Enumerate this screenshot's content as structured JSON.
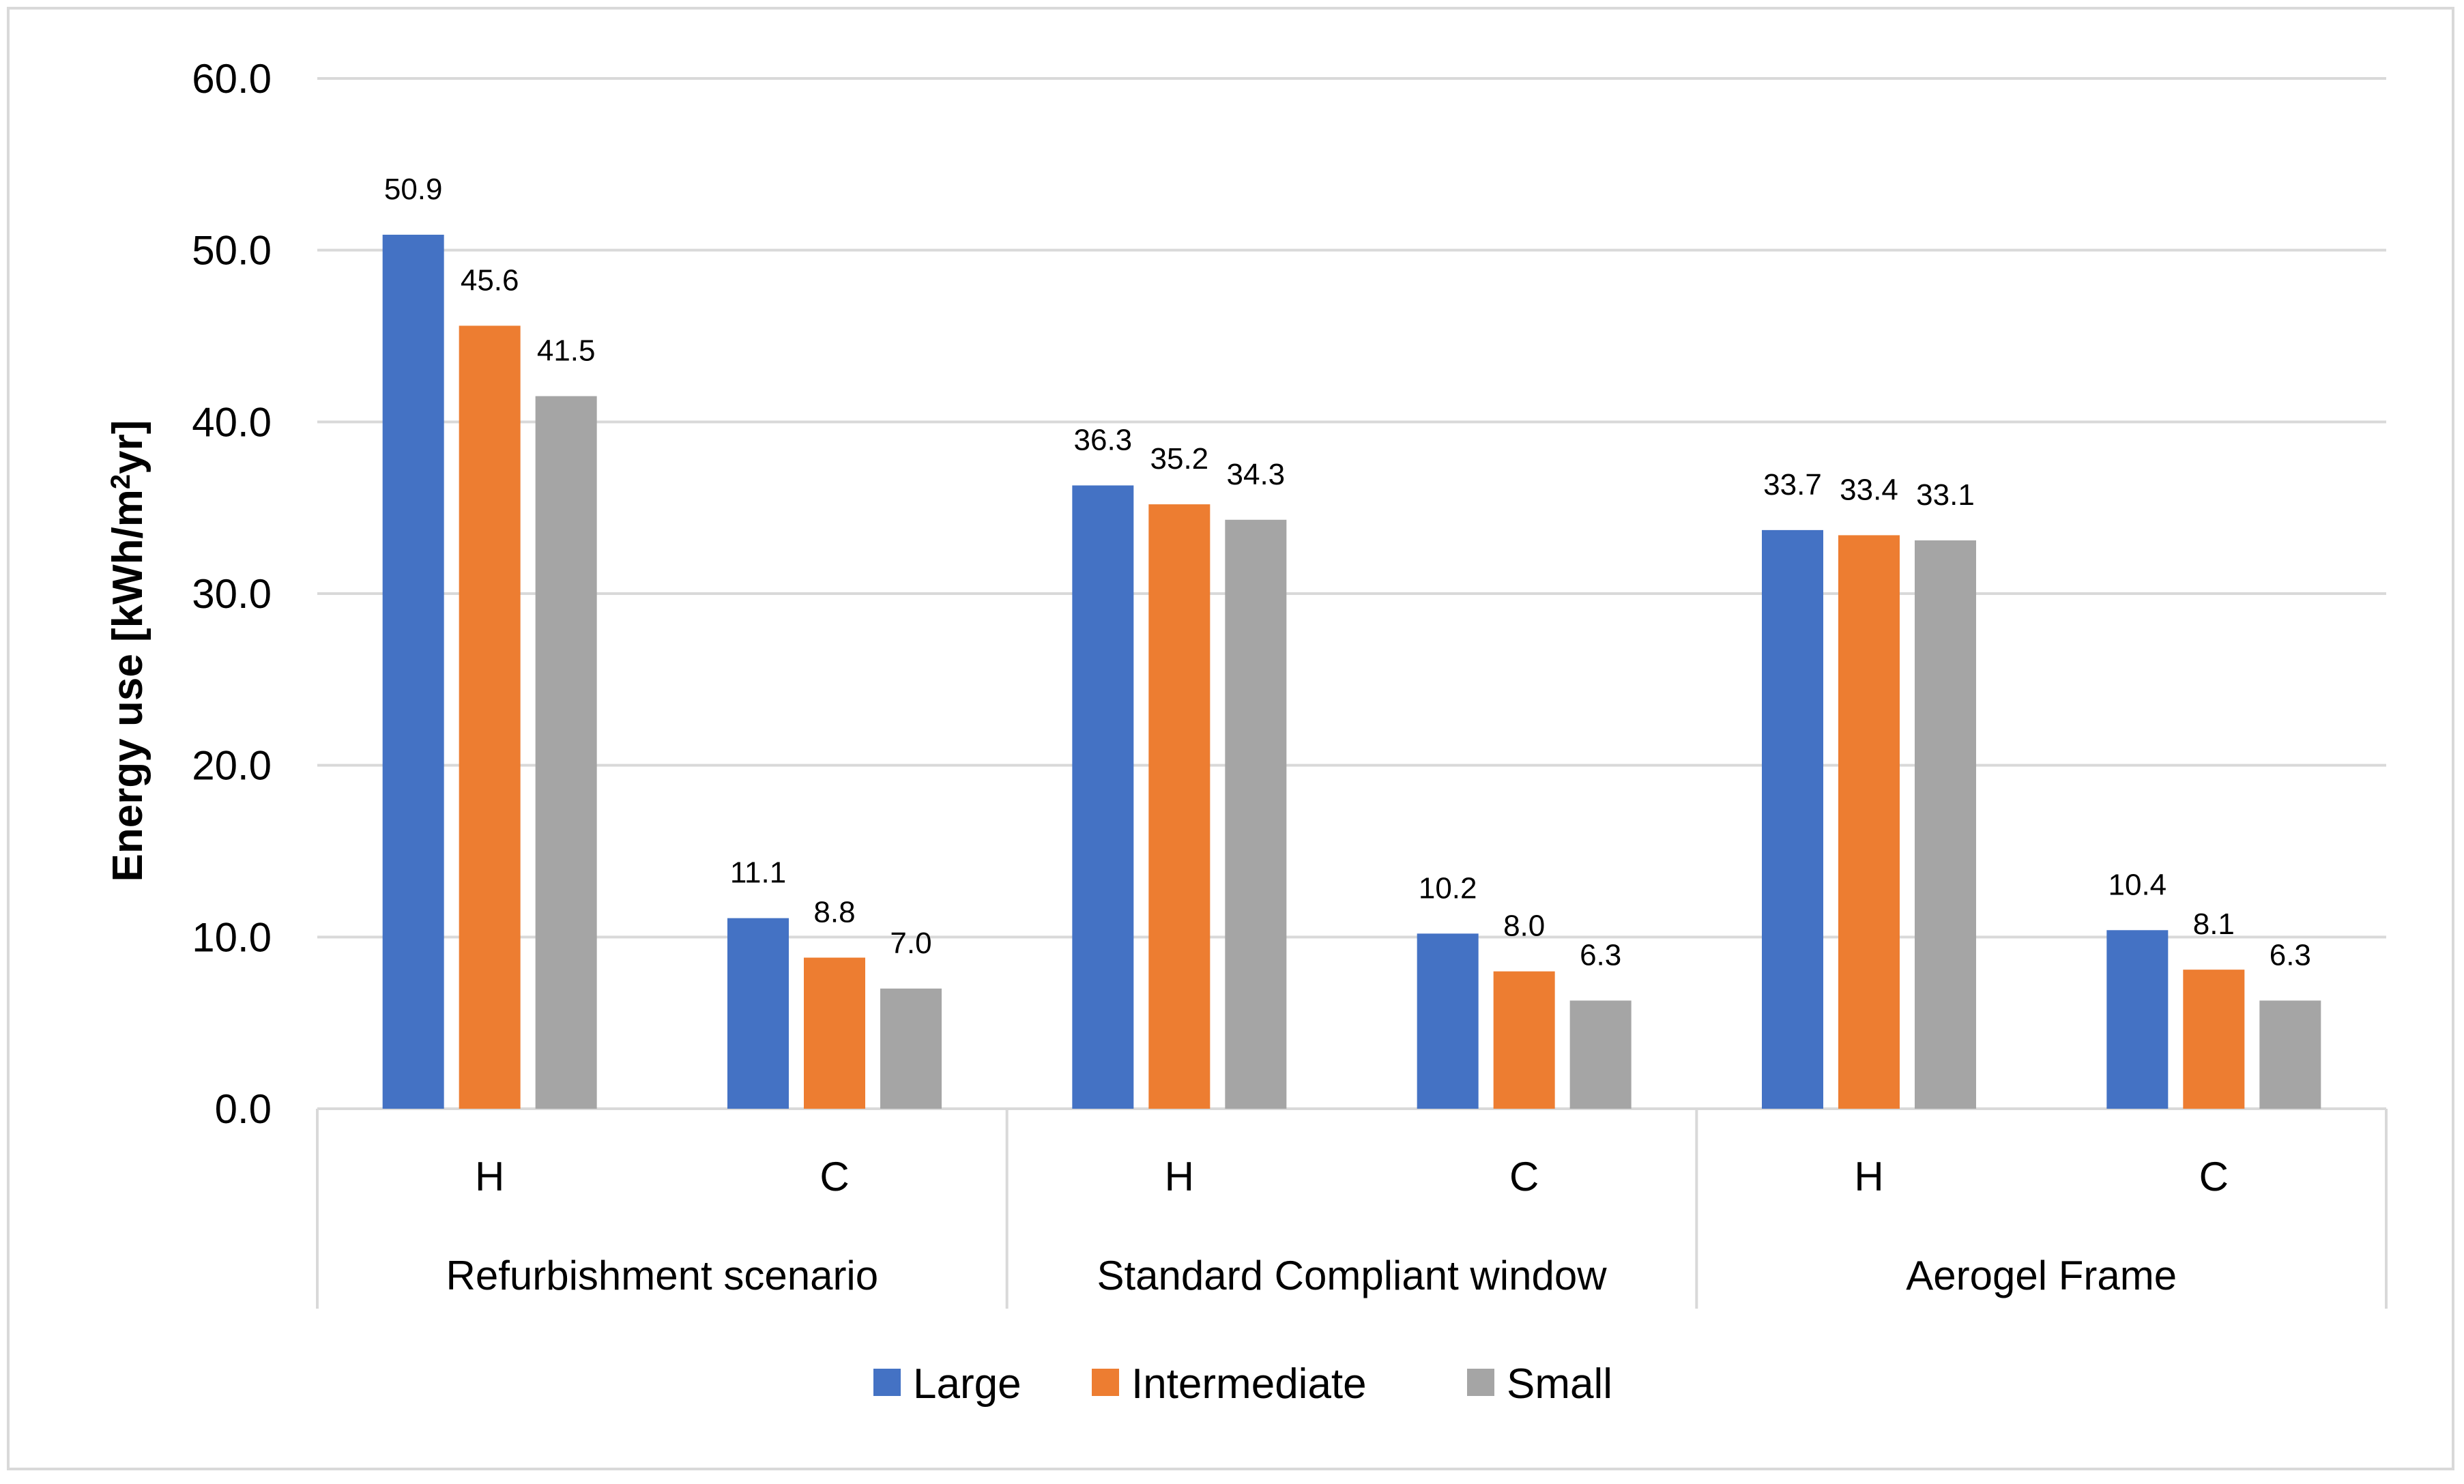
{
  "chart_data": {
    "type": "bar",
    "title": "",
    "ylabel": "Energy use [kWh/m²yr]",
    "ylabel_base": "Energy use [kWh/m",
    "ylabel_sup": "2",
    "ylabel_end": "yr]",
    "ylim": [
      0,
      60
    ],
    "yticks": [
      "0.0",
      "10.0",
      "20.0",
      "30.0",
      "40.0",
      "50.0",
      "60.0"
    ],
    "grid": true,
    "groups": [
      "Refurbishment scenario",
      "Standard Compliant window",
      "Aerogel Frame"
    ],
    "subcategories": [
      "H",
      "C",
      "H",
      "C",
      "H",
      "C"
    ],
    "legend_position": "bottom",
    "series": [
      {
        "name": "Large",
        "color": "#4472c4",
        "values": [
          50.9,
          11.1,
          36.3,
          10.2,
          33.7,
          10.4
        ],
        "labels": [
          "50.9",
          "11.1",
          "36.3",
          "10.2",
          "33.7",
          "10.4"
        ]
      },
      {
        "name": "Intermediate",
        "color": "#ed7d31",
        "values": [
          45.6,
          8.8,
          35.2,
          8.0,
          33.4,
          8.1
        ],
        "labels": [
          "45.6",
          "8.8",
          "35.2",
          "8.0",
          "33.4",
          "8.1"
        ]
      },
      {
        "name": "Small",
        "color": "#a5a5a5",
        "values": [
          41.5,
          7.0,
          34.3,
          6.3,
          33.1,
          6.3
        ],
        "labels": [
          "41.5",
          "7.0",
          "34.3",
          "6.3",
          "33.1",
          "6.3"
        ]
      }
    ]
  }
}
